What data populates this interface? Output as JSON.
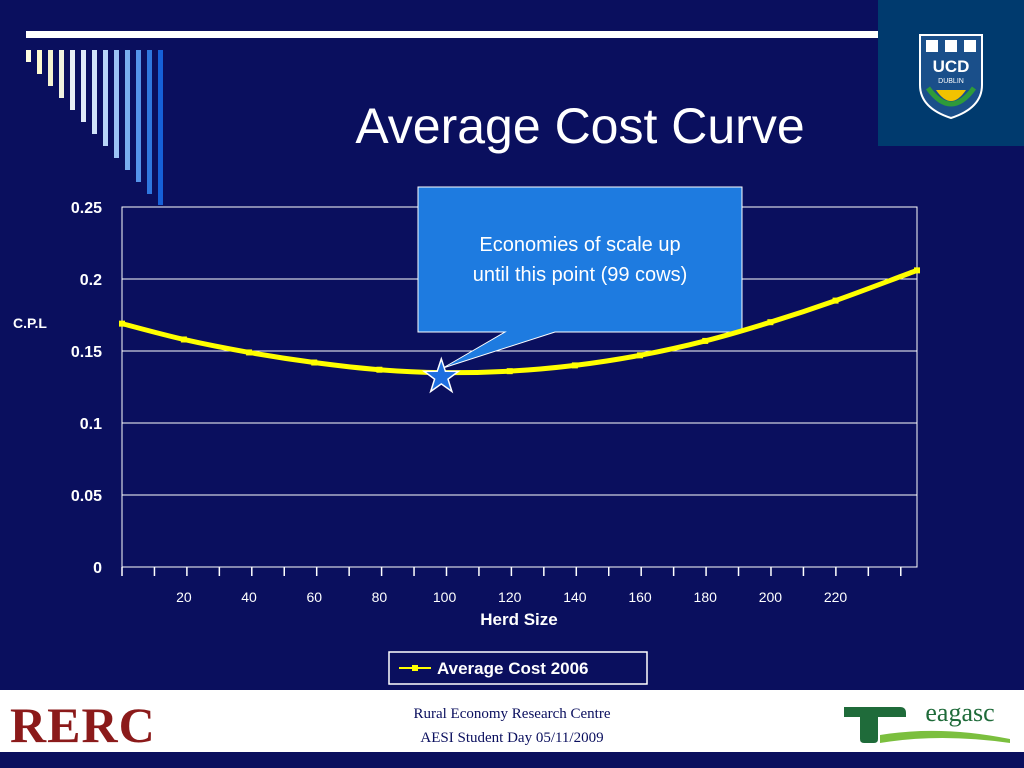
{
  "slide": {
    "title": "Average Cost Curve"
  },
  "callout": {
    "line1": "Economies of scale up",
    "line2": "until this point (99 cows)"
  },
  "chart_data": {
    "type": "line",
    "title": "",
    "xlabel": "Herd Size",
    "ylabel": "C.P.L",
    "ylim": [
      0,
      0.25
    ],
    "xlim": [
      1,
      245
    ],
    "y_ticks": [
      "0",
      "0.05",
      "0.1",
      "0.15",
      "0.2",
      "0.25"
    ],
    "x_ticks": [
      "20",
      "40",
      "60",
      "80",
      "100",
      "120",
      "140",
      "160",
      "180",
      "200",
      "220"
    ],
    "grid": "horizontal",
    "legend_position": "bottom",
    "series": [
      {
        "name": "Average Cost 2006",
        "color": "#ffff00",
        "x": [
          1,
          20,
          40,
          60,
          80,
          99,
          120,
          140,
          160,
          180,
          200,
          220,
          245
        ],
        "y": [
          0.169,
          0.158,
          0.149,
          0.142,
          0.137,
          0.135,
          0.136,
          0.14,
          0.147,
          0.157,
          0.17,
          0.185,
          0.206
        ]
      }
    ],
    "annotation": {
      "marker": "star",
      "x": 99,
      "y": 0.132
    }
  },
  "footer": {
    "logo_text": "RERC",
    "line1": "Rural Economy Research Centre",
    "line2": "AESI Student Day 05/11/2009",
    "ucd_text": "UCD",
    "ucd_sub": "DUBLIN",
    "teagasc_text": "eagasc"
  },
  "colors": {
    "background": "#0a0f5e",
    "callout": "#1e7be0",
    "line": "#ffff00",
    "rerc": "#8b1a1a",
    "teagasc": "#1f6b3a"
  }
}
